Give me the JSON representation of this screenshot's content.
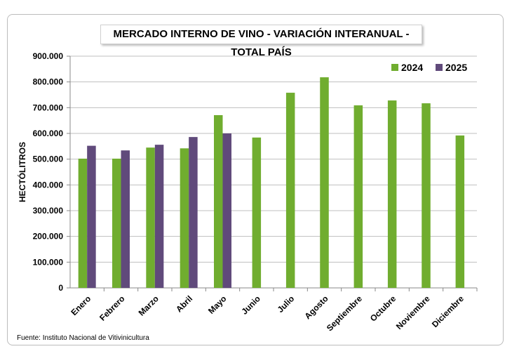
{
  "chart_data": {
    "type": "bar",
    "title": "MERCADO INTERNO DE VINO - VARIACIÓN INTERANUAL - TOTAL PAÍS",
    "xlabel": "",
    "ylabel": "HECTÓLITROS",
    "ylim": [
      0,
      900000
    ],
    "yticks": [
      0,
      100000,
      200000,
      300000,
      400000,
      500000,
      600000,
      700000,
      800000,
      900000
    ],
    "ytick_labels": [
      "0",
      "100.000",
      "200.000",
      "300.000",
      "400.000",
      "500.000",
      "600.000",
      "700.000",
      "800.000",
      "900.000"
    ],
    "grid": true,
    "legend_position": "top-right",
    "categories": [
      "Enero",
      "Febrero",
      "Marzo",
      "Abril",
      "Mayo",
      "Junio",
      "Julio",
      "Agosto",
      "Septiembre",
      "Octubre",
      "Noviembre",
      "Diciembre"
    ],
    "series": [
      {
        "name": "2024",
        "color": "#70ad2f",
        "values": [
          502000,
          502000,
          545000,
          542000,
          671000,
          584000,
          758000,
          818000,
          709000,
          728000,
          717000,
          592000
        ]
      },
      {
        "name": "2025",
        "color": "#604a7b",
        "values": [
          552000,
          534000,
          556000,
          586000,
          600000,
          null,
          null,
          null,
          null,
          null,
          null,
          null
        ]
      }
    ]
  },
  "source": "Fuente: Instituto Nacional de Vitivinicultura"
}
